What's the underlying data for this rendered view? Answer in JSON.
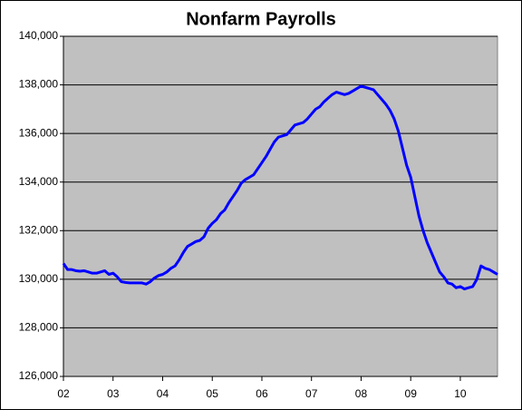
{
  "chart_data": {
    "type": "line",
    "title": "Nonfarm Payrolls",
    "categories": [
      "02",
      null,
      null,
      null,
      null,
      null,
      null,
      null,
      null,
      null,
      null,
      null,
      "03",
      null,
      null,
      null,
      null,
      null,
      null,
      null,
      null,
      null,
      null,
      null,
      "04",
      null,
      null,
      null,
      null,
      null,
      null,
      null,
      null,
      null,
      null,
      null,
      "05",
      null,
      null,
      null,
      null,
      null,
      null,
      null,
      null,
      null,
      null,
      null,
      "06",
      null,
      null,
      null,
      null,
      null,
      null,
      null,
      null,
      null,
      null,
      null,
      "07",
      null,
      null,
      null,
      null,
      null,
      null,
      null,
      null,
      null,
      null,
      null,
      "08",
      null,
      null,
      null,
      null,
      null,
      null,
      null,
      null,
      null,
      null,
      null,
      "09",
      null,
      null,
      null,
      null,
      null,
      null,
      null,
      null,
      null,
      null,
      null,
      "10",
      null,
      null,
      null,
      null,
      null,
      null,
      null,
      null,
      null
    ],
    "values": [
      130650,
      130400,
      130400,
      130350,
      130330,
      130350,
      130300,
      130250,
      130250,
      130300,
      130350,
      130200,
      130250,
      130100,
      129900,
      129870,
      129850,
      129850,
      129850,
      129850,
      129800,
      129900,
      130050,
      130150,
      130200,
      130300,
      130450,
      130550,
      130800,
      131100,
      131350,
      131450,
      131550,
      131600,
      131750,
      132100,
      132300,
      132450,
      132700,
      132850,
      133150,
      133400,
      133650,
      133950,
      134100,
      134200,
      134300,
      134550,
      134800,
      135050,
      135350,
      135650,
      135850,
      135900,
      135950,
      136150,
      136350,
      136400,
      136450,
      136600,
      136800,
      137000,
      137100,
      137300,
      137450,
      137600,
      137700,
      137650,
      137600,
      137650,
      137750,
      137850,
      137950,
      137900,
      137850,
      137800,
      137600,
      137400,
      137200,
      136950,
      136600,
      136100,
      135400,
      134700,
      134200,
      133400,
      132600,
      132000,
      131500,
      131100,
      130700,
      130300,
      130100,
      129850,
      129800,
      129650,
      129700,
      129600,
      129650,
      129700,
      130000,
      130550,
      130450,
      130400,
      130300,
      130200
    ],
    "color": "#0000ff",
    "ylim": [
      126000,
      140000
    ],
    "yticks": [
      {
        "value": 126000,
        "label": "126,000"
      },
      {
        "value": 128000,
        "label": "128,000"
      },
      {
        "value": 130000,
        "label": "130,000"
      },
      {
        "value": 132000,
        "label": "132,000"
      },
      {
        "value": 134000,
        "label": "134,000"
      },
      {
        "value": 136000,
        "label": "136,000"
      },
      {
        "value": 138000,
        "label": "138,000"
      },
      {
        "value": 140000,
        "label": "140,000"
      }
    ],
    "grid": true
  }
}
